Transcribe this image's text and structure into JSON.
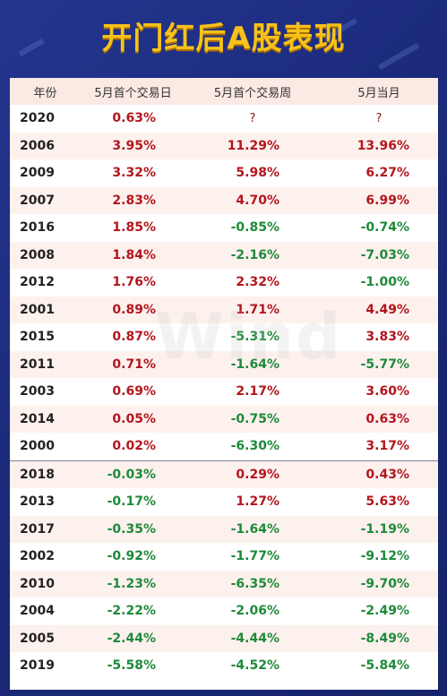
{
  "title": "开门红后A股表现",
  "watermark": "Wind",
  "headers": [
    "年份",
    "5月首个交易日",
    "5月首个交易周",
    "5月当月"
  ],
  "colors": {
    "positive": "#b3161e",
    "negative": "#1e8a3a",
    "title": "#f6c21b",
    "background": "#1c2c80"
  },
  "rows": [
    {
      "year": "2020",
      "day": "0.63%",
      "week": "?",
      "month": "?"
    },
    {
      "year": "2006",
      "day": "3.95%",
      "week": "11.29%",
      "month": "13.96%"
    },
    {
      "year": "2009",
      "day": "3.32%",
      "week": "5.98%",
      "month": "6.27%"
    },
    {
      "year": "2007",
      "day": "2.83%",
      "week": "4.70%",
      "month": "6.99%"
    },
    {
      "year": "2016",
      "day": "1.85%",
      "week": "-0.85%",
      "month": "-0.74%"
    },
    {
      "year": "2008",
      "day": "1.84%",
      "week": "-2.16%",
      "month": "-7.03%"
    },
    {
      "year": "2012",
      "day": "1.76%",
      "week": "2.32%",
      "month": "-1.00%"
    },
    {
      "year": "2001",
      "day": "0.89%",
      "week": "1.71%",
      "month": "4.49%"
    },
    {
      "year": "2015",
      "day": "0.87%",
      "week": "-5.31%",
      "month": "3.83%"
    },
    {
      "year": "2011",
      "day": "0.71%",
      "week": "-1.64%",
      "month": "-5.77%"
    },
    {
      "year": "2003",
      "day": "0.69%",
      "week": "2.17%",
      "month": "3.60%"
    },
    {
      "year": "2014",
      "day": "0.05%",
      "week": "-0.75%",
      "month": "0.63%"
    },
    {
      "year": "2000",
      "day": "0.02%",
      "week": "-6.30%",
      "month": "3.17%"
    },
    {
      "year": "2018",
      "day": "-0.03%",
      "week": "0.29%",
      "month": "0.43%"
    },
    {
      "year": "2013",
      "day": "-0.17%",
      "week": "1.27%",
      "month": "5.63%"
    },
    {
      "year": "2017",
      "day": "-0.35%",
      "week": "-1.64%",
      "month": "-1.19%"
    },
    {
      "year": "2002",
      "day": "-0.92%",
      "week": "-1.77%",
      "month": "-9.12%"
    },
    {
      "year": "2010",
      "day": "-1.23%",
      "week": "-6.35%",
      "month": "-9.70%"
    },
    {
      "year": "2004",
      "day": "-2.22%",
      "week": "-2.06%",
      "month": "-2.49%"
    },
    {
      "year": "2005",
      "day": "-2.44%",
      "week": "-4.44%",
      "month": "-8.49%"
    },
    {
      "year": "2019",
      "day": "-5.58%",
      "week": "-4.52%",
      "month": "-5.84%"
    }
  ]
}
